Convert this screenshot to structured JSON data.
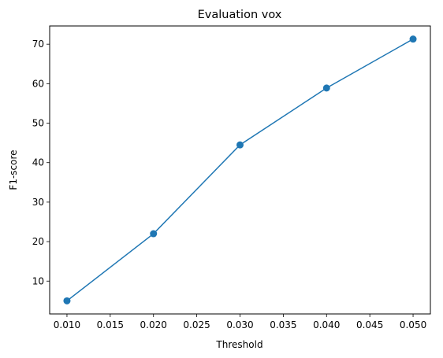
{
  "chart_data": {
    "type": "line",
    "title": "Evaluation vox",
    "xlabel": "Threshold",
    "ylabel": "F1-score",
    "x": [
      0.01,
      0.02,
      0.03,
      0.04,
      0.05
    ],
    "series": [
      {
        "values": [
          5.0,
          22.0,
          44.5,
          58.9,
          71.3
        ],
        "color": "#1f77b4",
        "marker": "circle"
      }
    ],
    "xticks": [
      0.01,
      0.015,
      0.02,
      0.025,
      0.03,
      0.035,
      0.04,
      0.045,
      0.05
    ],
    "xtick_labels": [
      "0.010",
      "0.015",
      "0.020",
      "0.025",
      "0.030",
      "0.035",
      "0.040",
      "0.045",
      "0.050"
    ],
    "yticks": [
      10,
      20,
      30,
      40,
      50,
      60,
      70
    ],
    "ytick_labels": [
      "10",
      "20",
      "30",
      "40",
      "50",
      "60",
      "70"
    ],
    "xlim": [
      0.008,
      0.052
    ],
    "ylim": [
      1.68,
      74.62
    ],
    "grid": false,
    "legend": "none"
  }
}
